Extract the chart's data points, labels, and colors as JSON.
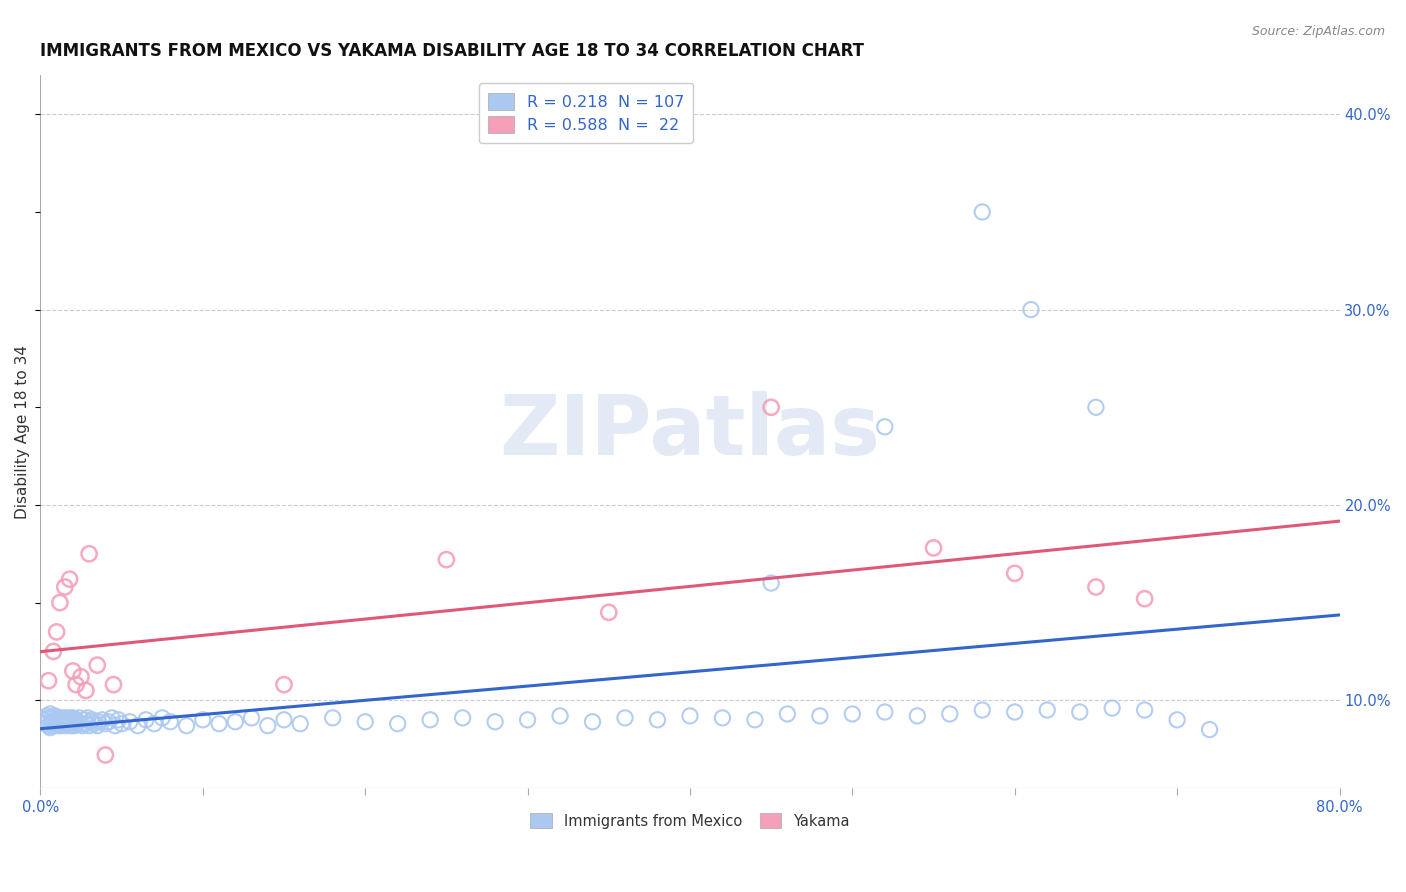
{
  "title": "IMMIGRANTS FROM MEXICO VS YAKAMA DISABILITY AGE 18 TO 34 CORRELATION CHART",
  "source": "Source: ZipAtlas.com",
  "ylabel": "Disability Age 18 to 34",
  "xlim": [
    0.0,
    0.8
  ],
  "ylim": [
    0.055,
    0.42
  ],
  "xticks": [
    0.0,
    0.1,
    0.2,
    0.3,
    0.4,
    0.5,
    0.6,
    0.7,
    0.8
  ],
  "yticks": [
    0.1,
    0.2,
    0.3,
    0.4
  ],
  "blue_color": "#aac8f0",
  "pink_color": "#f5a0b8",
  "blue_line_color": "#3366cc",
  "pink_line_color": "#e05878",
  "blue_R": 0.218,
  "blue_N": 107,
  "pink_R": 0.588,
  "pink_N": 22,
  "legend_color": "#3366cc",
  "watermark_color": "#ccd8ee",
  "blue_x": [
    0.002,
    0.003,
    0.004,
    0.005,
    0.005,
    0.006,
    0.006,
    0.007,
    0.007,
    0.008,
    0.008,
    0.009,
    0.009,
    0.01,
    0.01,
    0.01,
    0.011,
    0.011,
    0.012,
    0.012,
    0.013,
    0.013,
    0.014,
    0.014,
    0.015,
    0.015,
    0.016,
    0.016,
    0.017,
    0.017,
    0.018,
    0.018,
    0.019,
    0.019,
    0.02,
    0.02,
    0.021,
    0.021,
    0.022,
    0.022,
    0.023,
    0.024,
    0.025,
    0.026,
    0.027,
    0.028,
    0.029,
    0.03,
    0.031,
    0.032,
    0.033,
    0.035,
    0.036,
    0.038,
    0.04,
    0.042,
    0.044,
    0.046,
    0.048,
    0.05,
    0.055,
    0.06,
    0.065,
    0.07,
    0.075,
    0.08,
    0.09,
    0.1,
    0.11,
    0.12,
    0.13,
    0.14,
    0.15,
    0.16,
    0.18,
    0.2,
    0.22,
    0.24,
    0.26,
    0.28,
    0.3,
    0.32,
    0.34,
    0.36,
    0.38,
    0.4,
    0.42,
    0.44,
    0.46,
    0.48,
    0.5,
    0.52,
    0.54,
    0.56,
    0.58,
    0.6,
    0.62,
    0.64,
    0.66,
    0.68,
    0.45,
    0.52,
    0.58,
    0.61,
    0.65,
    0.7,
    0.72
  ],
  "blue_y": [
    0.09,
    0.088,
    0.092,
    0.087,
    0.091,
    0.093,
    0.086,
    0.089,
    0.091,
    0.088,
    0.087,
    0.09,
    0.092,
    0.088,
    0.09,
    0.091,
    0.089,
    0.087,
    0.09,
    0.088,
    0.091,
    0.087,
    0.089,
    0.09,
    0.088,
    0.091,
    0.087,
    0.089,
    0.09,
    0.088,
    0.089,
    0.091,
    0.087,
    0.09,
    0.088,
    0.091,
    0.089,
    0.087,
    0.09,
    0.088,
    0.089,
    0.091,
    0.088,
    0.087,
    0.09,
    0.088,
    0.091,
    0.087,
    0.089,
    0.09,
    0.088,
    0.087,
    0.089,
    0.09,
    0.088,
    0.089,
    0.091,
    0.087,
    0.09,
    0.088,
    0.089,
    0.087,
    0.09,
    0.088,
    0.091,
    0.089,
    0.087,
    0.09,
    0.088,
    0.089,
    0.091,
    0.087,
    0.09,
    0.088,
    0.091,
    0.089,
    0.088,
    0.09,
    0.091,
    0.089,
    0.09,
    0.092,
    0.089,
    0.091,
    0.09,
    0.092,
    0.091,
    0.09,
    0.093,
    0.092,
    0.093,
    0.094,
    0.092,
    0.093,
    0.095,
    0.094,
    0.095,
    0.094,
    0.096,
    0.095,
    0.16,
    0.24,
    0.35,
    0.3,
    0.25,
    0.09,
    0.085
  ],
  "pink_x": [
    0.005,
    0.008,
    0.01,
    0.012,
    0.015,
    0.018,
    0.02,
    0.022,
    0.025,
    0.028,
    0.03,
    0.035,
    0.04,
    0.045,
    0.15,
    0.25,
    0.35,
    0.45,
    0.55,
    0.6,
    0.65,
    0.68
  ],
  "pink_y": [
    0.11,
    0.125,
    0.135,
    0.15,
    0.158,
    0.162,
    0.115,
    0.108,
    0.112,
    0.105,
    0.175,
    0.118,
    0.072,
    0.108,
    0.108,
    0.172,
    0.145,
    0.25,
    0.178,
    0.165,
    0.158,
    0.152
  ]
}
